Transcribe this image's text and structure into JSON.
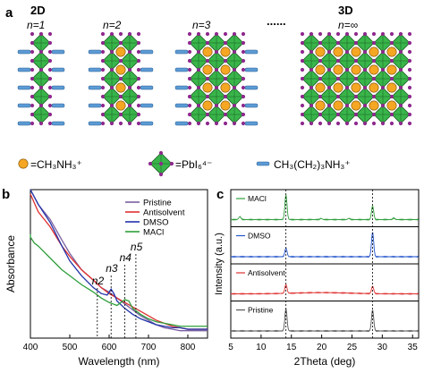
{
  "panel_a": {
    "label": "a",
    "dim_left": "2D",
    "dim_right": "3D",
    "n_labels": [
      "n=1",
      "n=2",
      "n=3",
      "n=∞"
    ],
    "dots": "......",
    "legend": {
      "ch3nh3": "=CH₃NH₃⁺",
      "pbi6": "=PbI₆⁴⁻",
      "spacer": "CH₃(CH₂)₃NH₃⁺"
    },
    "colors": {
      "octahedron": "#39b54a",
      "octa_edge": "#1a5c22",
      "iodide": "#8e2a8e",
      "cation": "#f5a623",
      "spacer": "#5b9bd5"
    }
  },
  "chart_data": [
    {
      "type": "line",
      "panel_label": "b",
      "xlabel": "Wavelength (nm)",
      "ylabel": "Absorbance",
      "xlim": [
        400,
        850
      ],
      "xticks": [
        400,
        500,
        600,
        700,
        800
      ],
      "legend_placement": "top-right",
      "series": [
        {
          "name": "Pristine",
          "color": "#7a5fa0",
          "x": [
            390,
            420,
            450,
            480,
            500,
            530,
            560,
            580,
            600,
            620,
            640,
            660,
            680,
            700,
            720,
            740,
            760,
            780,
            800,
            830,
            850
          ],
          "y": [
            1.0,
            0.9,
            0.8,
            0.66,
            0.57,
            0.46,
            0.39,
            0.34,
            0.31,
            0.27,
            0.23,
            0.19,
            0.15,
            0.12,
            0.09,
            0.07,
            0.06,
            0.05,
            0.05,
            0.05,
            0.05
          ]
        },
        {
          "name": "Antisolvent",
          "color": "#e03030",
          "x": [
            390,
            420,
            450,
            480,
            500,
            530,
            560,
            580,
            600,
            620,
            640,
            660,
            680,
            700,
            720,
            740,
            760,
            780,
            800,
            830,
            850
          ],
          "y": [
            0.97,
            0.85,
            0.75,
            0.62,
            0.55,
            0.46,
            0.39,
            0.34,
            0.3,
            0.27,
            0.24,
            0.21,
            0.18,
            0.15,
            0.12,
            0.1,
            0.08,
            0.07,
            0.06,
            0.06,
            0.06
          ]
        },
        {
          "name": "DMSO",
          "color": "#2233aa",
          "x": [
            390,
            420,
            450,
            480,
            500,
            530,
            560,
            580,
            595,
            605,
            612,
            620,
            640,
            660,
            680,
            700,
            720,
            740,
            760,
            780,
            800,
            830,
            850
          ],
          "y": [
            1.0,
            0.9,
            0.78,
            0.62,
            0.52,
            0.42,
            0.34,
            0.3,
            0.29,
            0.33,
            0.3,
            0.25,
            0.2,
            0.16,
            0.13,
            0.11,
            0.09,
            0.08,
            0.07,
            0.07,
            0.06,
            0.06,
            0.06
          ]
        },
        {
          "name": "MACl",
          "color": "#2e9e3a",
          "x": [
            390,
            400,
            410,
            420,
            450,
            480,
            500,
            530,
            560,
            580,
            600,
            620,
            640,
            650,
            660,
            680,
            700,
            720,
            740,
            760,
            780,
            800,
            830,
            850
          ],
          "y": [
            0.7,
            0.68,
            0.64,
            0.62,
            0.54,
            0.46,
            0.42,
            0.36,
            0.31,
            0.27,
            0.24,
            0.22,
            0.26,
            0.25,
            0.2,
            0.16,
            0.13,
            0.11,
            0.1,
            0.09,
            0.08,
            0.08,
            0.08,
            0.08
          ]
        }
      ],
      "annotations": [
        {
          "text": "n2",
          "x": 570
        },
        {
          "text": "n3",
          "x": 605
        },
        {
          "text": "n4",
          "x": 640
        },
        {
          "text": "n5",
          "x": 668
        }
      ]
    },
    {
      "type": "line",
      "panel_label": "c",
      "xlabel": "2Theta (deg)",
      "ylabel": "Intensity (a.u.)",
      "xlim": [
        5,
        36
      ],
      "xticks": [
        5,
        10,
        15,
        20,
        25,
        30,
        35
      ],
      "reference_lines": [
        14.1,
        28.4
      ],
      "stack": [
        {
          "name": "MACl",
          "color": "#2e9e3a",
          "peaks": [
            [
              14.1,
              1.0
            ],
            [
              28.4,
              0.55
            ],
            [
              6.5,
              0.12
            ],
            [
              19.9,
              0.05
            ],
            [
              24.5,
              0.05
            ],
            [
              31.9,
              0.06
            ]
          ]
        },
        {
          "name": "DMSO",
          "color": "#2255cc",
          "peaks": [
            [
              14.1,
              0.35
            ],
            [
              28.4,
              1.0
            ]
          ]
        },
        {
          "name": "Antisolvent",
          "color": "#e03030",
          "peaks": [
            [
              14.1,
              0.35
            ],
            [
              28.4,
              0.3
            ]
          ]
        },
        {
          "name": "Pristine",
          "color": "#555555",
          "peaks": [
            [
              14.1,
              0.9
            ],
            [
              28.4,
              0.85
            ]
          ]
        }
      ]
    }
  ]
}
